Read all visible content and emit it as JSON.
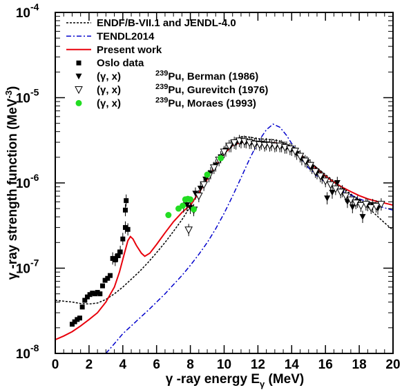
{
  "chart_data": {
    "type": "scatter",
    "xlabel": "γ -ray energy E",
    "xlabel_sub": "γ",
    "xlabel_unit": " (MeV)",
    "ylabel": "γ -ray strength function (MeV",
    "ylabel_sup": "-3",
    "ylabel_close": ")",
    "xlim": [
      0,
      20
    ],
    "ylim": [
      1e-08,
      0.0001
    ],
    "yscale": "log",
    "x_ticks": [
      "0",
      "2",
      "4",
      "6",
      "8",
      "10",
      "12",
      "14",
      "16",
      "18",
      "20"
    ],
    "y_ticks": [
      {
        "base": "10",
        "exp": "-8"
      },
      {
        "base": "10",
        "exp": "-7"
      },
      {
        "base": "10",
        "exp": "-6"
      },
      {
        "base": "10",
        "exp": "-5"
      },
      {
        "base": "10",
        "exp": "-4"
      }
    ],
    "legend_position": "top-left",
    "legend": [
      {
        "label": "ENDF/B-VII.1 and JENDL-4.0",
        "style": "dotted-line",
        "color": "#000000"
      },
      {
        "label": "TENDL2014",
        "style": "dashdot-line",
        "color": "#0000cc"
      },
      {
        "label": "Present work",
        "style": "line",
        "color": "#e8000b"
      },
      {
        "label": "Oslo data",
        "style": "square",
        "color": "#000000"
      },
      {
        "label": "(γ, x)",
        "sup": "239",
        "label2": "Pu, Berman (1986)",
        "style": "down-triangle-filled",
        "color": "#000000"
      },
      {
        "label": "(γ, x)",
        "sup": "239",
        "label2": "Pu, Gurevitch (1976)",
        "style": "down-triangle-open",
        "color": "#000000"
      },
      {
        "label": "(γ, x)",
        "sup": "239",
        "label2": "Pu, Moraes (1993)",
        "style": "circle",
        "color": "#22dd22"
      }
    ],
    "series": [
      {
        "name": "ENDF/B-VII.1 and JENDL-4.0",
        "kind": "line",
        "points": [
          [
            0,
            4.2e-08
          ],
          [
            0.5,
            4.1e-08
          ],
          [
            1,
            4e-08
          ],
          [
            1.5,
            3.85e-08
          ],
          [
            2,
            3.8e-08
          ],
          [
            2.5,
            3.9e-08
          ],
          [
            3,
            4.3e-08
          ],
          [
            3.5,
            5e-08
          ],
          [
            4,
            6e-08
          ],
          [
            4.5,
            7.4e-08
          ],
          [
            5,
            9.2e-08
          ],
          [
            5.5,
            1.17e-07
          ],
          [
            6,
            1.52e-07
          ],
          [
            6.5,
            2e-07
          ],
          [
            7,
            2.7e-07
          ],
          [
            7.5,
            3.7e-07
          ],
          [
            8,
            5.3e-07
          ],
          [
            8.5,
            7.8e-07
          ],
          [
            9,
            1.15e-06
          ],
          [
            9.5,
            1.7e-06
          ],
          [
            10,
            2.4e-06
          ],
          [
            10.5,
            3.05e-06
          ],
          [
            11,
            3.5e-06
          ],
          [
            11.5,
            3.45e-06
          ],
          [
            12,
            3.3e-06
          ],
          [
            12.5,
            3.25e-06
          ],
          [
            13,
            3.2e-06
          ],
          [
            13.5,
            3e-06
          ],
          [
            14,
            2.6e-06
          ],
          [
            14.5,
            2.2e-06
          ],
          [
            15,
            1.8e-06
          ],
          [
            15.5,
            1.5e-06
          ],
          [
            16,
            1.25e-06
          ],
          [
            16.5,
            1.05e-06
          ],
          [
            17,
            8.8e-07
          ],
          [
            17.5,
            7.4e-07
          ],
          [
            18,
            6.3e-07
          ],
          [
            18.5,
            5.2e-07
          ],
          [
            19,
            4.2e-07
          ],
          [
            19.5,
            3.4e-07
          ],
          [
            20,
            2.8e-07
          ]
        ]
      },
      {
        "name": "TENDL2014",
        "kind": "line",
        "points": [
          [
            3,
            1e-08
          ],
          [
            3.5,
            1.3e-08
          ],
          [
            4,
            1.7e-08
          ],
          [
            4.5,
            2.1e-08
          ],
          [
            5,
            2.6e-08
          ],
          [
            5.5,
            3.2e-08
          ],
          [
            6,
            4e-08
          ],
          [
            6.5,
            5e-08
          ],
          [
            7,
            6.4e-08
          ],
          [
            7.5,
            8.2e-08
          ],
          [
            8,
            1.08e-07
          ],
          [
            8.5,
            1.45e-07
          ],
          [
            9,
            2e-07
          ],
          [
            9.5,
            2.9e-07
          ],
          [
            10,
            4.4e-07
          ],
          [
            10.5,
            7e-07
          ],
          [
            11,
            1.15e-06
          ],
          [
            11.5,
            1.9e-06
          ],
          [
            12,
            3e-06
          ],
          [
            12.5,
            4.2e-06
          ],
          [
            12.9,
            4.9e-06
          ],
          [
            13.3,
            4.5e-06
          ],
          [
            13.7,
            3.6e-06
          ],
          [
            14,
            2.9e-06
          ],
          [
            14.5,
            2e-06
          ],
          [
            15,
            1.5e-06
          ],
          [
            15.5,
            1.2e-06
          ],
          [
            16,
            1.02e-06
          ],
          [
            16.5,
            9e-07
          ],
          [
            17,
            8e-07
          ],
          [
            17.5,
            7.2e-07
          ],
          [
            18,
            6.5e-07
          ],
          [
            18.5,
            6e-07
          ],
          [
            19,
            5.5e-07
          ],
          [
            19.5,
            5.1e-07
          ],
          [
            20,
            4.8e-07
          ]
        ]
      },
      {
        "name": "Present work",
        "kind": "line",
        "points": [
          [
            0,
            1.45e-08
          ],
          [
            0.5,
            1.6e-08
          ],
          [
            1,
            1.8e-08
          ],
          [
            1.5,
            2.1e-08
          ],
          [
            2,
            2.5e-08
          ],
          [
            2.5,
            3e-08
          ],
          [
            3,
            4e-08
          ],
          [
            3.5,
            6e-08
          ],
          [
            3.8,
            9e-08
          ],
          [
            4.1,
            1.5e-07
          ],
          [
            4.3,
            2.1e-07
          ],
          [
            4.45,
            2.35e-07
          ],
          [
            4.6,
            2.2e-07
          ],
          [
            4.8,
            1.85e-07
          ],
          [
            5.1,
            1.5e-07
          ],
          [
            5.3,
            1.38e-07
          ],
          [
            5.6,
            1.5e-07
          ],
          [
            6,
            1.9e-07
          ],
          [
            6.5,
            2.6e-07
          ],
          [
            7,
            3.5e-07
          ],
          [
            7.5,
            4.5e-07
          ],
          [
            8,
            5.5e-07
          ],
          [
            8.5,
            7.6e-07
          ],
          [
            9,
            1.1e-06
          ],
          [
            9.5,
            1.6e-06
          ],
          [
            10,
            2.2e-06
          ],
          [
            10.5,
            2.75e-06
          ],
          [
            11,
            3e-06
          ],
          [
            11.5,
            3.05e-06
          ],
          [
            12,
            3e-06
          ],
          [
            12.5,
            3e-06
          ],
          [
            13,
            2.95e-06
          ],
          [
            13.5,
            2.85e-06
          ],
          [
            14,
            2.55e-06
          ],
          [
            14.5,
            2.15e-06
          ],
          [
            15,
            1.75e-06
          ],
          [
            15.5,
            1.45e-06
          ],
          [
            16,
            1.2e-06
          ],
          [
            16.5,
            1.02e-06
          ],
          [
            17,
            8.9e-07
          ],
          [
            17.5,
            7.9e-07
          ],
          [
            18,
            7.1e-07
          ],
          [
            18.5,
            6.5e-07
          ],
          [
            19,
            6.1e-07
          ],
          [
            19.5,
            5.8e-07
          ],
          [
            20,
            5.5e-07
          ]
        ]
      },
      {
        "name": "Oslo data",
        "kind": "square",
        "points": [
          [
            1.0,
            2.2e-08
          ],
          [
            1.15,
            2.35e-08
          ],
          [
            1.3,
            2.5e-08
          ],
          [
            1.45,
            2.6e-08
          ],
          [
            1.6,
            3.5e-08
          ],
          [
            1.75,
            4.2e-08
          ],
          [
            1.9,
            4.6e-08
          ],
          [
            2.05,
            4.9e-08
          ],
          [
            2.2,
            5.1e-08
          ],
          [
            2.35,
            5e-08
          ],
          [
            2.5,
            5.2e-08
          ],
          [
            2.65,
            5e-08
          ],
          [
            2.8,
            6.2e-08
          ],
          [
            2.95,
            7.2e-08
          ],
          [
            3.1,
            7.6e-08
          ],
          [
            3.25,
            8.2e-08
          ],
          [
            3.4,
            1.3e-07
          ],
          [
            3.55,
            1.25e-07
          ],
          [
            3.7,
            1.4e-07
          ],
          [
            3.85,
            1.55e-07
          ],
          [
            4.0,
            2.2e-07
          ],
          [
            4.15,
            3e-07
          ],
          [
            4.3,
            2.85e-07
          ],
          [
            4.2,
            6.2e-07
          ],
          [
            4.15,
            4.8e-07
          ]
        ]
      },
      {
        "name": "Berman (1986)",
        "kind": "down-triangle-filled",
        "points": [
          [
            7.6,
            5.3e-07
          ],
          [
            7.8,
            5.5e-07
          ],
          [
            8.0,
            5.1e-07
          ],
          [
            8.3,
            7.5e-07
          ],
          [
            8.6,
            8.6e-07
          ],
          [
            8.9,
            1.1e-06
          ],
          [
            9.2,
            1.3e-06
          ],
          [
            9.5,
            1.6e-06
          ],
          [
            9.8,
            2e-06
          ],
          [
            10.1,
            2.4e-06
          ],
          [
            10.4,
            2.7e-06
          ],
          [
            10.7,
            2.9e-06
          ],
          [
            11.0,
            3e-06
          ],
          [
            11.3,
            3e-06
          ],
          [
            11.6,
            2.95e-06
          ],
          [
            11.9,
            2.9e-06
          ],
          [
            12.2,
            2.9e-06
          ],
          [
            12.5,
            2.85e-06
          ],
          [
            12.8,
            2.8e-06
          ],
          [
            13.1,
            2.75e-06
          ],
          [
            13.4,
            2.7e-06
          ],
          [
            13.7,
            2.6e-06
          ],
          [
            14.0,
            2.45e-06
          ],
          [
            14.3,
            2.2e-06
          ],
          [
            14.6,
            1.9e-06
          ],
          [
            14.9,
            1.75e-06
          ],
          [
            15.2,
            1.5e-06
          ],
          [
            15.5,
            1.3e-06
          ],
          [
            15.8,
            1.15e-06
          ],
          [
            16.1,
            6.6e-07
          ],
          [
            16.4,
            7.7e-07
          ],
          [
            16.7,
            1e-06
          ],
          [
            17.0,
            8e-07
          ],
          [
            17.3,
            6e-07
          ],
          [
            17.6,
            5.2e-07
          ],
          [
            17.9,
            6e-07
          ],
          [
            18.2,
            4e-07
          ],
          [
            18.5,
            5.5e-07
          ],
          [
            18.8,
            5.5e-07
          ],
          [
            19.1,
            5e-07
          ]
        ]
      },
      {
        "name": "Gurevitch (1976)",
        "kind": "down-triangle-open",
        "points": [
          [
            7.9,
            2.8e-07
          ],
          [
            8.2,
            4.8e-07
          ],
          [
            8.5,
            7e-07
          ],
          [
            8.8,
            9.5e-07
          ],
          [
            9.1,
            1.2e-06
          ],
          [
            9.4,
            1.5e-06
          ],
          [
            9.7,
            1.85e-06
          ],
          [
            10.0,
            2.3e-06
          ],
          [
            10.3,
            2.7e-06
          ],
          [
            10.6,
            2.95e-06
          ],
          [
            10.9,
            3.1e-06
          ],
          [
            11.2,
            3.05e-06
          ],
          [
            11.5,
            2.95e-06
          ],
          [
            11.8,
            2.85e-06
          ],
          [
            12.1,
            2.8e-06
          ],
          [
            12.4,
            2.75e-06
          ],
          [
            12.7,
            2.75e-06
          ],
          [
            13.0,
            2.7e-06
          ],
          [
            13.3,
            2.7e-06
          ],
          [
            13.6,
            2.6e-06
          ],
          [
            13.9,
            2.5e-06
          ],
          [
            14.2,
            2.35e-06
          ],
          [
            14.5,
            2.05e-06
          ],
          [
            14.8,
            1.8e-06
          ],
          [
            15.1,
            1.6e-06
          ],
          [
            15.4,
            1.35e-06
          ],
          [
            15.7,
            1.2e-06
          ],
          [
            16.0,
            1.05e-06
          ],
          [
            16.3,
            9.5e-07
          ],
          [
            16.6,
            8.5e-07
          ],
          [
            16.9,
            7.8e-07
          ],
          [
            17.2,
            7e-07
          ],
          [
            17.5,
            6.3e-07
          ],
          [
            17.8,
            5.8e-07
          ],
          [
            18.1,
            5.4e-07
          ],
          [
            18.4,
            5.6e-07
          ],
          [
            18.7,
            5.1e-07
          ],
          [
            19.0,
            5.3e-07
          ],
          [
            19.3,
            5.6e-07
          ]
        ]
      },
      {
        "name": "Moraes (1993)",
        "kind": "circle",
        "points": [
          [
            6.7,
            4.2e-07
          ],
          [
            7.3,
            5e-07
          ],
          [
            7.55,
            5.4e-07
          ],
          [
            7.7,
            6.4e-07
          ],
          [
            7.85,
            6.5e-07
          ],
          [
            8.0,
            6.4e-07
          ],
          [
            8.2,
            4.9e-07
          ],
          [
            9.0,
            1.25e-06
          ],
          [
            9.8,
            1.95e-06
          ]
        ]
      }
    ]
  }
}
